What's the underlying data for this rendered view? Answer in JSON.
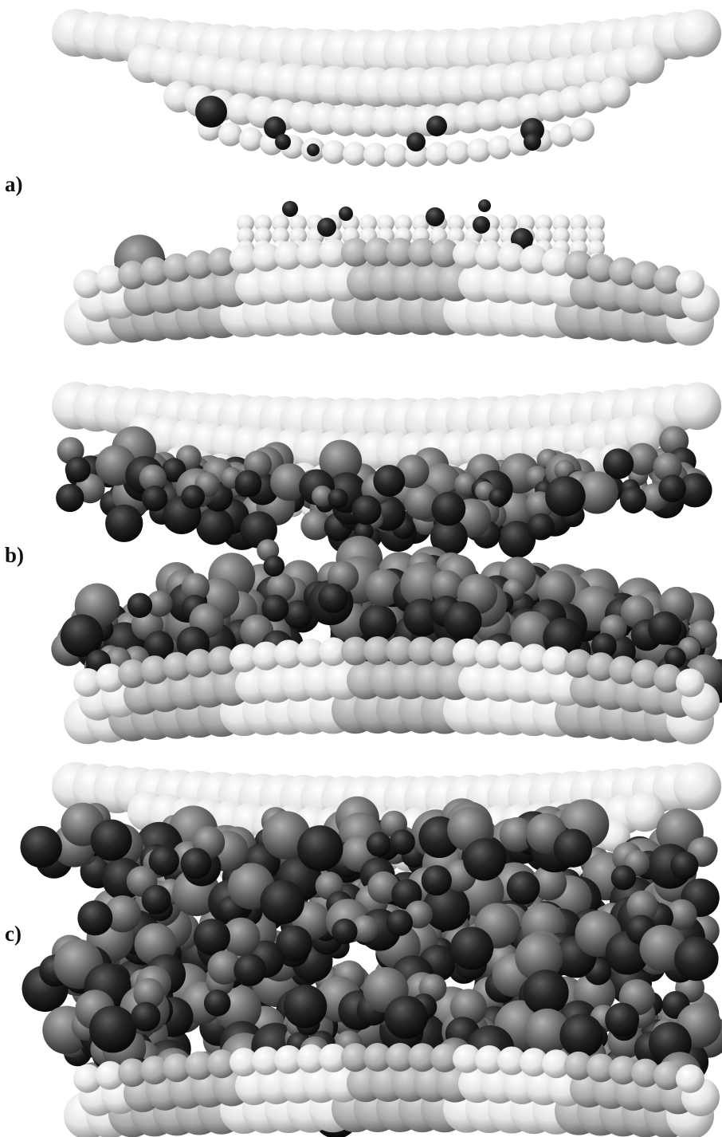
{
  "panels": [
    {
      "label": "a)"
    },
    {
      "label": "b)"
    },
    {
      "label": "c)"
    }
  ],
  "colors": {
    "background": "#ffffff",
    "wall_atom": "#e6e6e6",
    "wall_atom_shadow": "#9a9a9a",
    "fluid_dark": "#1c1c1c",
    "fluid_mid": "#6e6e6e",
    "label_text": "#111111"
  }
}
